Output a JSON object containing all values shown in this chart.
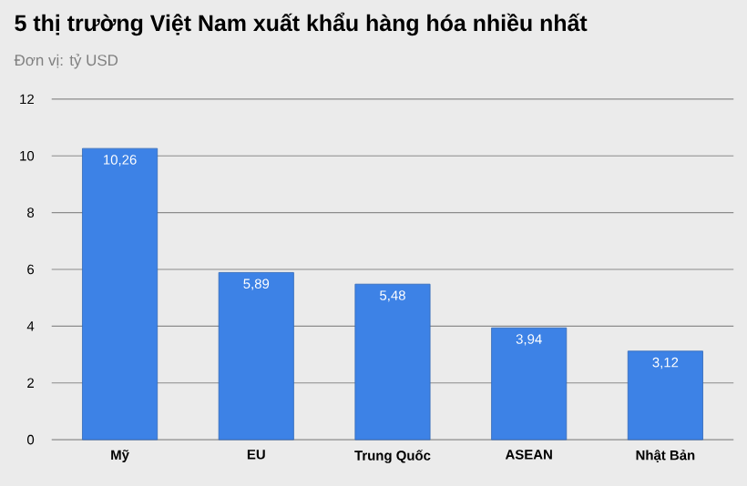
{
  "chart_data": {
    "type": "bar",
    "title": "5 thị trường Việt Nam xuất khẩu hàng hóa nhiều nhất",
    "subtitle": "Đơn vị: tỷ USD",
    "categories": [
      "Mỹ",
      "EU",
      "Trung Quốc",
      "ASEAN",
      "Nhật Bản"
    ],
    "values": [
      10.26,
      5.89,
      5.48,
      3.94,
      3.12
    ],
    "value_labels": [
      "10,26",
      "5,89",
      "5,48",
      "3,94",
      "3,12"
    ],
    "color": "#3d82e6",
    "ylim": [
      0,
      12
    ],
    "yticks": [
      0,
      2,
      4,
      6,
      8,
      10,
      12
    ],
    "grid": "y"
  }
}
